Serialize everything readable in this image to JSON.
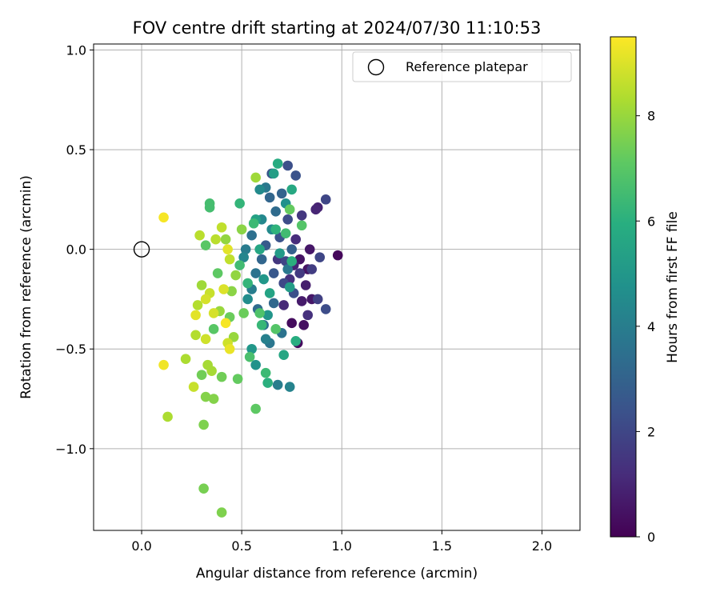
{
  "chart_data": {
    "type": "scatter",
    "title": "FOV centre drift starting at 2024/07/30 11:10:53",
    "xlabel": "Angular distance from reference (arcmin)",
    "ylabel": "Rotation from reference (arcmin)",
    "xlim": [
      -0.24,
      2.19
    ],
    "ylim": [
      -1.41,
      1.03
    ],
    "xticks": [
      0.0,
      0.5,
      1.0,
      1.5,
      2.0
    ],
    "xtick_labels": [
      "0.0",
      "0.5",
      "1.0",
      "1.5",
      "2.0"
    ],
    "yticks": [
      -1.0,
      -0.5,
      0.0,
      0.5,
      1.0
    ],
    "ytick_labels": [
      "−1.0",
      "−0.5",
      "0.0",
      "0.5",
      "1.0"
    ],
    "grid": true,
    "legend": {
      "position": "top-right",
      "entries": [
        "Reference platepar"
      ]
    },
    "reference_point": {
      "x": 0.0,
      "y": 0.0
    },
    "colorbar": {
      "label": "Hours from first FF file",
      "min": 0,
      "max": 9.5,
      "ticks": [
        0,
        2,
        4,
        6,
        8
      ],
      "tick_labels": [
        "0",
        "2",
        "4",
        "6",
        "8"
      ],
      "colormap": "viridis"
    },
    "points": [
      {
        "x": 0.98,
        "y": -0.03,
        "h": 0.2
      },
      {
        "x": 0.81,
        "y": -0.38,
        "h": 0.4
      },
      {
        "x": 0.78,
        "y": -0.47,
        "h": 0.3
      },
      {
        "x": 0.75,
        "y": -0.37,
        "h": 0.3
      },
      {
        "x": 0.85,
        "y": -0.25,
        "h": 0.6
      },
      {
        "x": 0.83,
        "y": -0.1,
        "h": 0.5
      },
      {
        "x": 0.84,
        "y": 0.0,
        "h": 0.6
      },
      {
        "x": 0.79,
        "y": -0.05,
        "h": 0.5
      },
      {
        "x": 0.82,
        "y": -0.18,
        "h": 0.8
      },
      {
        "x": 0.8,
        "y": -0.26,
        "h": 0.7
      },
      {
        "x": 0.88,
        "y": 0.21,
        "h": 0.9
      },
      {
        "x": 0.76,
        "y": -0.08,
        "h": 1.0
      },
      {
        "x": 0.87,
        "y": 0.2,
        "h": 1.0
      },
      {
        "x": 0.71,
        "y": -0.28,
        "h": 1.1
      },
      {
        "x": 0.77,
        "y": 0.05,
        "h": 1.2
      },
      {
        "x": 0.74,
        "y": -0.15,
        "h": 1.3
      },
      {
        "x": 0.83,
        "y": -0.33,
        "h": 1.3
      },
      {
        "x": 0.68,
        "y": -0.05,
        "h": 1.5
      },
      {
        "x": 0.8,
        "y": 0.17,
        "h": 1.5
      },
      {
        "x": 0.79,
        "y": -0.12,
        "h": 1.6
      },
      {
        "x": 0.85,
        "y": -0.1,
        "h": 1.7
      },
      {
        "x": 0.88,
        "y": -0.25,
        "h": 1.8
      },
      {
        "x": 0.92,
        "y": 0.25,
        "h": 2.0
      },
      {
        "x": 0.89,
        "y": -0.04,
        "h": 2.0
      },
      {
        "x": 0.92,
        "y": -0.3,
        "h": 2.2
      },
      {
        "x": 0.73,
        "y": 0.42,
        "h": 2.3
      },
      {
        "x": 0.77,
        "y": 0.37,
        "h": 2.4
      },
      {
        "x": 0.65,
        "y": 0.38,
        "h": 2.5
      },
      {
        "x": 0.73,
        "y": 0.15,
        "h": 2.2
      },
      {
        "x": 0.72,
        "y": -0.06,
        "h": 2.0
      },
      {
        "x": 0.71,
        "y": -0.17,
        "h": 2.1
      },
      {
        "x": 0.76,
        "y": -0.22,
        "h": 2.3
      },
      {
        "x": 0.69,
        "y": 0.06,
        "h": 2.4
      },
      {
        "x": 0.66,
        "y": -0.12,
        "h": 2.6
      },
      {
        "x": 0.62,
        "y": 0.02,
        "h": 2.7
      },
      {
        "x": 0.75,
        "y": 0.0,
        "h": 2.9
      },
      {
        "x": 0.7,
        "y": 0.28,
        "h": 3.0
      },
      {
        "x": 0.64,
        "y": 0.26,
        "h": 3.1
      },
      {
        "x": 0.6,
        "y": -0.05,
        "h": 3.1
      },
      {
        "x": 0.58,
        "y": -0.3,
        "h": 3.3
      },
      {
        "x": 0.61,
        "y": -0.38,
        "h": 3.4
      },
      {
        "x": 0.66,
        "y": -0.27,
        "h": 3.2
      },
      {
        "x": 0.67,
        "y": 0.19,
        "h": 3.3
      },
      {
        "x": 0.55,
        "y": 0.07,
        "h": 3.5
      },
      {
        "x": 0.57,
        "y": -0.12,
        "h": 3.6
      },
      {
        "x": 0.7,
        "y": -0.42,
        "h": 3.6
      },
      {
        "x": 0.64,
        "y": -0.47,
        "h": 3.7
      },
      {
        "x": 0.62,
        "y": 0.31,
        "h": 3.8
      },
      {
        "x": 0.52,
        "y": 0.0,
        "h": 3.9
      },
      {
        "x": 0.55,
        "y": -0.2,
        "h": 4.0
      },
      {
        "x": 0.73,
        "y": -0.1,
        "h": 3.8
      },
      {
        "x": 0.68,
        "y": -0.68,
        "h": 4.0
      },
      {
        "x": 0.62,
        "y": -0.45,
        "h": 4.1
      },
      {
        "x": 0.74,
        "y": -0.69,
        "h": 4.2
      },
      {
        "x": 0.51,
        "y": -0.04,
        "h": 4.3
      },
      {
        "x": 0.6,
        "y": 0.15,
        "h": 4.4
      },
      {
        "x": 0.59,
        "y": 0.3,
        "h": 4.5
      },
      {
        "x": 0.65,
        "y": 0.1,
        "h": 4.5
      },
      {
        "x": 0.53,
        "y": -0.25,
        "h": 4.6
      },
      {
        "x": 0.72,
        "y": 0.23,
        "h": 4.7
      },
      {
        "x": 0.57,
        "y": -0.58,
        "h": 4.8
      },
      {
        "x": 0.63,
        "y": -0.33,
        "h": 4.9
      },
      {
        "x": 0.55,
        "y": -0.5,
        "h": 5.0
      },
      {
        "x": 0.61,
        "y": -0.15,
        "h": 5.0
      },
      {
        "x": 0.69,
        "y": -0.02,
        "h": 5.1
      },
      {
        "x": 0.74,
        "y": -0.19,
        "h": 5.2
      },
      {
        "x": 0.66,
        "y": 0.38,
        "h": 5.3
      },
      {
        "x": 0.57,
        "y": 0.15,
        "h": 5.4
      },
      {
        "x": 0.64,
        "y": -0.22,
        "h": 5.5
      },
      {
        "x": 0.59,
        "y": 0.0,
        "h": 5.6
      },
      {
        "x": 0.75,
        "y": 0.3,
        "h": 5.7
      },
      {
        "x": 0.68,
        "y": 0.43,
        "h": 5.8
      },
      {
        "x": 0.71,
        "y": -0.53,
        "h": 5.6
      },
      {
        "x": 0.77,
        "y": -0.46,
        "h": 5.9
      },
      {
        "x": 0.63,
        "y": -0.67,
        "h": 6.0
      },
      {
        "x": 0.75,
        "y": -0.06,
        "h": 6.0
      },
      {
        "x": 0.67,
        "y": 0.1,
        "h": 6.1
      },
      {
        "x": 0.49,
        "y": 0.23,
        "h": 6.2
      },
      {
        "x": 0.53,
        "y": -0.17,
        "h": 6.2
      },
      {
        "x": 0.6,
        "y": -0.38,
        "h": 6.3
      },
      {
        "x": 0.62,
        "y": -0.62,
        "h": 6.4
      },
      {
        "x": 0.56,
        "y": 0.13,
        "h": 6.4
      },
      {
        "x": 0.72,
        "y": 0.08,
        "h": 6.5
      },
      {
        "x": 0.49,
        "y": -0.08,
        "h": 6.5
      },
      {
        "x": 0.34,
        "y": 0.21,
        "h": 6.6
      },
      {
        "x": 0.34,
        "y": 0.23,
        "h": 6.6
      },
      {
        "x": 0.54,
        "y": -0.54,
        "h": 6.7
      },
      {
        "x": 0.59,
        "y": -0.32,
        "h": 6.8
      },
      {
        "x": 0.67,
        "y": -0.4,
        "h": 6.9
      },
      {
        "x": 0.8,
        "y": 0.12,
        "h": 6.9
      },
      {
        "x": 0.36,
        "y": -0.4,
        "h": 7.0
      },
      {
        "x": 0.32,
        "y": 0.02,
        "h": 7.0
      },
      {
        "x": 0.38,
        "y": -0.12,
        "h": 7.1
      },
      {
        "x": 0.57,
        "y": -0.8,
        "h": 7.1
      },
      {
        "x": 0.48,
        "y": -0.65,
        "h": 7.2
      },
      {
        "x": 0.74,
        "y": 0.2,
        "h": 7.2
      },
      {
        "x": 0.44,
        "y": -0.34,
        "h": 7.3
      },
      {
        "x": 0.51,
        "y": -0.32,
        "h": 7.3
      },
      {
        "x": 0.4,
        "y": -0.64,
        "h": 7.4
      },
      {
        "x": 0.3,
        "y": -0.63,
        "h": 7.4
      },
      {
        "x": 0.31,
        "y": -1.2,
        "h": 7.5
      },
      {
        "x": 0.4,
        "y": -1.32,
        "h": 7.6
      },
      {
        "x": 0.31,
        "y": -0.88,
        "h": 7.6
      },
      {
        "x": 0.36,
        "y": -0.75,
        "h": 7.7
      },
      {
        "x": 0.32,
        "y": -0.74,
        "h": 7.7
      },
      {
        "x": 0.45,
        "y": -0.21,
        "h": 7.8
      },
      {
        "x": 0.5,
        "y": 0.1,
        "h": 7.8
      },
      {
        "x": 0.42,
        "y": 0.05,
        "h": 7.9
      },
      {
        "x": 0.47,
        "y": -0.13,
        "h": 7.9
      },
      {
        "x": 0.39,
        "y": -0.31,
        "h": 8.0
      },
      {
        "x": 0.46,
        "y": -0.44,
        "h": 8.0
      },
      {
        "x": 0.57,
        "y": 0.36,
        "h": 8.1
      },
      {
        "x": 0.3,
        "y": -0.18,
        "h": 8.1
      },
      {
        "x": 0.33,
        "y": -0.58,
        "h": 8.2
      },
      {
        "x": 0.35,
        "y": -0.61,
        "h": 8.2
      },
      {
        "x": 0.22,
        "y": -0.55,
        "h": 8.3
      },
      {
        "x": 0.13,
        "y": -0.84,
        "h": 8.3
      },
      {
        "x": 0.27,
        "y": -0.43,
        "h": 8.4
      },
      {
        "x": 0.28,
        "y": -0.28,
        "h": 8.4
      },
      {
        "x": 0.29,
        "y": 0.07,
        "h": 8.5
      },
      {
        "x": 0.37,
        "y": 0.05,
        "h": 8.5
      },
      {
        "x": 0.4,
        "y": 0.11,
        "h": 8.6
      },
      {
        "x": 0.44,
        "y": -0.05,
        "h": 8.6
      },
      {
        "x": 0.26,
        "y": -0.69,
        "h": 8.7
      },
      {
        "x": 0.34,
        "y": -0.22,
        "h": 8.7
      },
      {
        "x": 0.32,
        "y": -0.45,
        "h": 8.8
      },
      {
        "x": 0.43,
        "y": -0.47,
        "h": 8.8
      },
      {
        "x": 0.32,
        "y": -0.25,
        "h": 8.9
      },
      {
        "x": 0.36,
        "y": -0.32,
        "h": 8.9
      },
      {
        "x": 0.41,
        "y": -0.2,
        "h": 9.0
      },
      {
        "x": 0.27,
        "y": -0.33,
        "h": 9.1
      },
      {
        "x": 0.43,
        "y": 0.0,
        "h": 9.1
      },
      {
        "x": 0.44,
        "y": -0.5,
        "h": 9.2
      },
      {
        "x": 0.11,
        "y": -0.58,
        "h": 9.3
      },
      {
        "x": 0.11,
        "y": 0.16,
        "h": 9.4
      },
      {
        "x": 0.42,
        "y": -0.37,
        "h": 9.4
      }
    ]
  }
}
